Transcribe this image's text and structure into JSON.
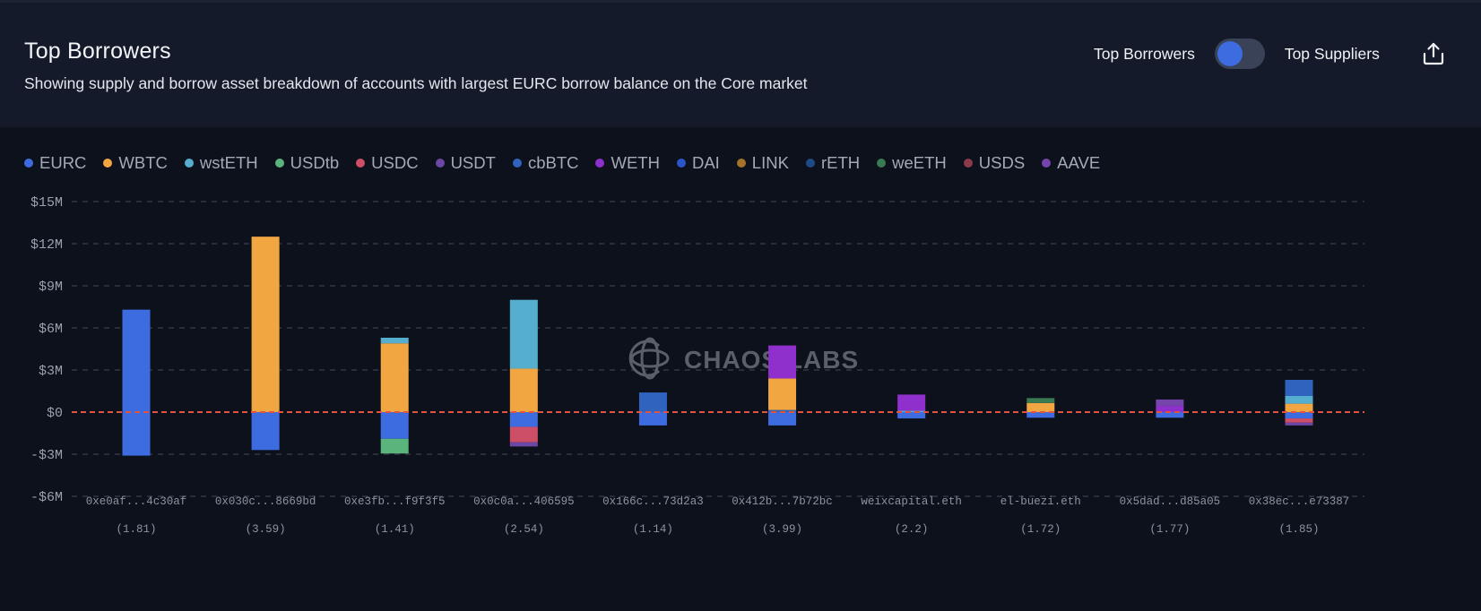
{
  "header": {
    "title": "Top Borrowers",
    "subtitle": "Showing supply and borrow asset breakdown of accounts with largest EURC borrow balance on the Core market",
    "toggle_left_label": "Top Borrowers",
    "toggle_right_label": "Top Suppliers",
    "toggle_state": "Top Borrowers",
    "share_icon": "share-icon"
  },
  "watermark": "CHAOS LABS",
  "chart_data": {
    "type": "bar",
    "stacked": true,
    "title": "Top Borrowers",
    "xlabel": "",
    "ylabel": "",
    "ylim": [
      -6000000,
      15000000
    ],
    "yticks": [
      15000000,
      12000000,
      9000000,
      6000000,
      3000000,
      0,
      -3000000,
      -6000000
    ],
    "ytick_labels": [
      "$15M",
      "$12M",
      "$9M",
      "$6M",
      "$3M",
      "$0",
      "-$3M",
      "-$6M"
    ],
    "grid": true,
    "legend_position": "top-left",
    "assets": [
      {
        "name": "EURC",
        "color": "#3d6be0"
      },
      {
        "name": "WBTC",
        "color": "#f2a641"
      },
      {
        "name": "wstETH",
        "color": "#56aece"
      },
      {
        "name": "USDtb",
        "color": "#5ab47c"
      },
      {
        "name": "USDC",
        "color": "#cc4f67"
      },
      {
        "name": "USDT",
        "color": "#6b48a6"
      },
      {
        "name": "cbBTC",
        "color": "#2f63be"
      },
      {
        "name": "WETH",
        "color": "#8f2fcc"
      },
      {
        "name": "DAI",
        "color": "#2b55c8"
      },
      {
        "name": "LINK",
        "color": "#a6722c"
      },
      {
        "name": "rETH",
        "color": "#1f4a88"
      },
      {
        "name": "weETH",
        "color": "#3a7a52"
      },
      {
        "name": "USDS",
        "color": "#8c3a4c"
      },
      {
        "name": "AAVE",
        "color": "#7545ac"
      }
    ],
    "categories": [
      "0xe0af...4c30af",
      "0x030c...8669bd",
      "0xe3fb...f9f3f5",
      "0x0c0a...406595",
      "0x166c...73d2a3",
      "0x412b...7b72bc",
      "weixcapital.eth",
      "el-buezi.eth",
      "0x5dad...d85a05",
      "0x38ec...e73387"
    ],
    "health_factors": [
      "(1.81)",
      "(3.59)",
      "(1.41)",
      "(2.54)",
      "(1.14)",
      "(3.99)",
      "(2.2)",
      "(1.72)",
      "(1.77)",
      "(1.85)"
    ],
    "accounts": [
      {
        "supply": [
          {
            "asset": "EURC",
            "value": 7300000
          }
        ],
        "borrow": [
          {
            "asset": "EURC",
            "value": -3100000
          }
        ]
      },
      {
        "supply": [
          {
            "asset": "WBTC",
            "value": 12500000
          }
        ],
        "borrow": [
          {
            "asset": "EURC",
            "value": -2700000
          }
        ]
      },
      {
        "supply": [
          {
            "asset": "WBTC",
            "value": 4900000
          },
          {
            "asset": "wstETH",
            "value": 400000
          }
        ],
        "borrow": [
          {
            "asset": "EURC",
            "value": -1900000
          },
          {
            "asset": "USDtb",
            "value": -1050000
          }
        ]
      },
      {
        "supply": [
          {
            "asset": "WBTC",
            "value": 3100000
          },
          {
            "asset": "wstETH",
            "value": 4900000
          }
        ],
        "borrow": [
          {
            "asset": "EURC",
            "value": -1050000
          },
          {
            "asset": "USDC",
            "value": -1100000
          },
          {
            "asset": "USDT",
            "value": -300000
          }
        ]
      },
      {
        "supply": [
          {
            "asset": "cbBTC",
            "value": 1400000
          }
        ],
        "borrow": [
          {
            "asset": "EURC",
            "value": -950000
          }
        ]
      },
      {
        "supply": [
          {
            "asset": "cbBTC",
            "value": 150000
          },
          {
            "asset": "WBTC",
            "value": 2250000
          },
          {
            "asset": "WETH",
            "value": 2350000
          }
        ],
        "borrow": [
          {
            "asset": "EURC",
            "value": -950000
          }
        ]
      },
      {
        "supply": [
          {
            "asset": "wstETH",
            "value": 100000
          },
          {
            "asset": "WETH",
            "value": 1150000
          }
        ],
        "borrow": [
          {
            "asset": "EURC",
            "value": -450000
          }
        ]
      },
      {
        "supply": [
          {
            "asset": "WBTC",
            "value": 650000
          },
          {
            "asset": "weETH",
            "value": 350000
          }
        ],
        "borrow": [
          {
            "asset": "EURC",
            "value": -400000
          }
        ]
      },
      {
        "supply": [
          {
            "asset": "WETH",
            "value": 450000
          },
          {
            "asset": "AAVE",
            "value": 450000
          }
        ],
        "borrow": [
          {
            "asset": "EURC",
            "value": -400000
          }
        ]
      },
      {
        "supply": [
          {
            "asset": "WBTC",
            "value": 600000
          },
          {
            "asset": "wstETH",
            "value": 550000
          },
          {
            "asset": "cbBTC",
            "value": 1150000
          }
        ],
        "borrow": [
          {
            "asset": "EURC",
            "value": -450000
          },
          {
            "asset": "USDC",
            "value": -300000
          },
          {
            "asset": "USDT",
            "value": -200000
          }
        ]
      }
    ]
  }
}
